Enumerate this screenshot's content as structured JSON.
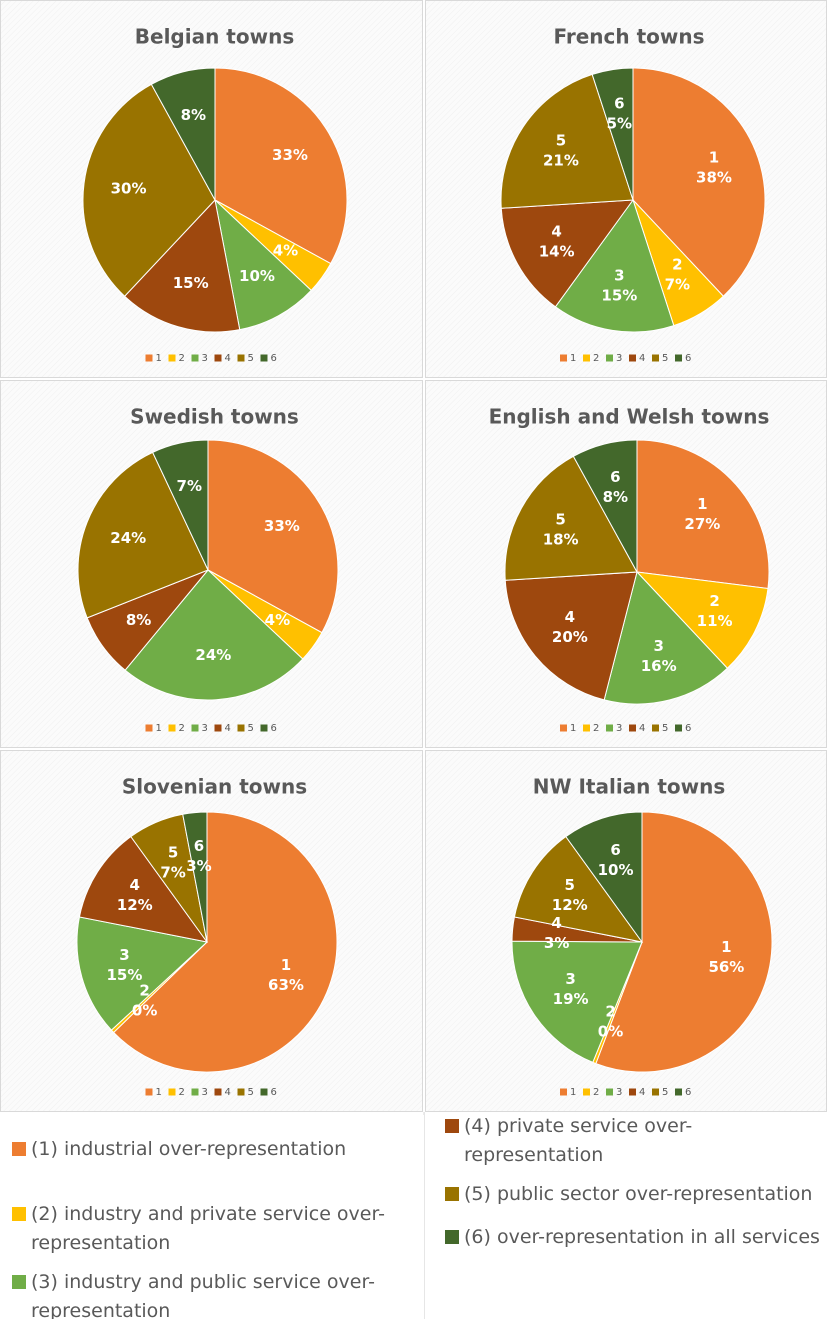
{
  "chart_data": [
    {
      "type": "pie",
      "title": "Belgian towns",
      "categories": [
        "1",
        "2",
        "3",
        "4",
        "5",
        "6"
      ],
      "values": [
        33,
        4,
        10,
        15,
        30,
        8
      ],
      "value_labels": [
        "33%",
        "4%",
        "10%",
        "15%",
        "30%",
        "8%"
      ],
      "show_category_in_label": false,
      "colors": [
        "#ED7D31",
        "#FFC000",
        "#70AD47",
        "#9E480E",
        "#997300",
        "#43682B"
      ],
      "legend": "bottom"
    },
    {
      "type": "pie",
      "title": "French towns",
      "categories": [
        "1",
        "2",
        "3",
        "4",
        "5",
        "6"
      ],
      "values": [
        38,
        7,
        15,
        14,
        21,
        5
      ],
      "value_labels": [
        "38%",
        "7%",
        "15%",
        "14%",
        "21%",
        "5%"
      ],
      "show_category_in_label": true,
      "colors": [
        "#ED7D31",
        "#FFC000",
        "#70AD47",
        "#9E480E",
        "#997300",
        "#43682B"
      ],
      "legend": "bottom"
    },
    {
      "type": "pie",
      "title": "Swedish towns",
      "categories": [
        "1",
        "2",
        "3",
        "4",
        "5",
        "6"
      ],
      "values": [
        33,
        4,
        24,
        8,
        24,
        7
      ],
      "value_labels": [
        "33%",
        "4%",
        "24%",
        "8%",
        "24%",
        "7%"
      ],
      "show_category_in_label": false,
      "colors": [
        "#ED7D31",
        "#FFC000",
        "#70AD47",
        "#9E480E",
        "#997300",
        "#43682B"
      ],
      "legend": "bottom"
    },
    {
      "type": "pie",
      "title": "English and Welsh towns",
      "categories": [
        "1",
        "2",
        "3",
        "4",
        "5",
        "6"
      ],
      "values": [
        27,
        11,
        16,
        20,
        18,
        8
      ],
      "value_labels": [
        "27%",
        "11%",
        "16%",
        "20%",
        "18%",
        "8%"
      ],
      "show_category_in_label": true,
      "colors": [
        "#ED7D31",
        "#FFC000",
        "#70AD47",
        "#9E480E",
        "#997300",
        "#43682B"
      ],
      "legend": "bottom"
    },
    {
      "type": "pie",
      "title": "Slovenian towns",
      "categories": [
        "1",
        "2",
        "3",
        "4",
        "5",
        "6"
      ],
      "values": [
        63,
        0.4,
        15,
        12,
        7,
        3
      ],
      "value_labels": [
        "63%",
        "0%",
        "15%",
        "12%",
        "7%",
        "3%"
      ],
      "show_category_in_label": true,
      "colors": [
        "#ED7D31",
        "#FFC000",
        "#70AD47",
        "#9E480E",
        "#997300",
        "#43682B"
      ],
      "legend": "bottom"
    },
    {
      "type": "pie",
      "title": "NW Italian towns",
      "categories": [
        "1",
        "2",
        "3",
        "4",
        "5",
        "6"
      ],
      "values": [
        56,
        0.4,
        19,
        3,
        12,
        10
      ],
      "value_labels": [
        "56%",
        "0%",
        "19%",
        "3%",
        "12%",
        "10%"
      ],
      "show_category_in_label": true,
      "colors": [
        "#ED7D31",
        "#FFC000",
        "#70AD47",
        "#9E480E",
        "#997300",
        "#43682B"
      ],
      "legend": "bottom"
    }
  ],
  "legend": [
    {
      "label": "(1) industrial over-representation",
      "color": "#ED7D31"
    },
    {
      "label": "(2) industry and private service over-representation",
      "color": "#FFC000"
    },
    {
      "label": "(3) industry and public service over-representation",
      "color": "#70AD47"
    },
    {
      "label": "(4) private service over-representation",
      "color": "#9E480E"
    },
    {
      "label": "(5) public sector over-representation",
      "color": "#997300"
    },
    {
      "label": "(6) over-representation in all services",
      "color": "#43682B"
    }
  ]
}
